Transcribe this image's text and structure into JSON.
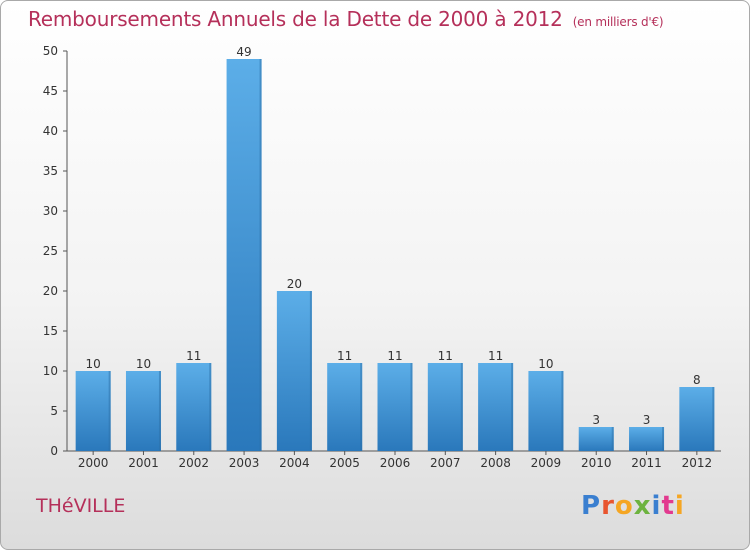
{
  "header": {
    "title": "Remboursements Annuels de la Dette de 2000 à 2012",
    "subtitle": "(en milliers d'€)"
  },
  "footer": {
    "commune": "THéVILLE",
    "logo_text": "Proxiti",
    "logo_colors": [
      "#3a7fd0",
      "#e8552f",
      "#f5a623",
      "#6db33f",
      "#3a7fd0",
      "#e23a8f",
      "#f5a623"
    ]
  },
  "colors": {
    "accent": "#b5305a",
    "bar_top": "#5aa9e6",
    "bar_bottom": "#2a7bbf"
  },
  "chart_data": {
    "type": "bar",
    "title": "Remboursements Annuels de la Dette de 2000 à 2012",
    "subtitle": "(en milliers d'€)",
    "categories": [
      "2000",
      "2001",
      "2002",
      "2003",
      "2004",
      "2005",
      "2006",
      "2007",
      "2008",
      "2009",
      "2010",
      "2011",
      "2012"
    ],
    "values": [
      10,
      10,
      11,
      49,
      20,
      11,
      11,
      11,
      11,
      10,
      3,
      3,
      8
    ],
    "yticks": [
      0,
      5,
      10,
      15,
      20,
      25,
      30,
      35,
      40,
      45,
      50
    ],
    "ylim": [
      0,
      50
    ],
    "grid": false,
    "legend": "none"
  }
}
